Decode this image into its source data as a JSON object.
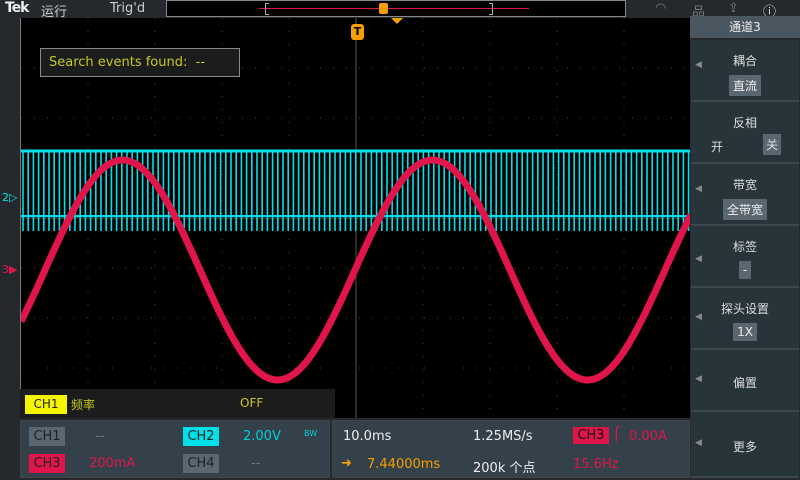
{
  "topbar": {
    "logo": "Tek",
    "run_state": "运行",
    "trigger_state": "Trig'd"
  },
  "icons": [
    "wifi-icon",
    "network-icon",
    "export-icon",
    "help-icon"
  ],
  "search": {
    "label": "Search events found:",
    "value": "--"
  },
  "measurement": {
    "source": "CH1",
    "name": "频率",
    "value": "OFF"
  },
  "markers": {
    "ch2": "2",
    "ch3": "3",
    "trigger": "T"
  },
  "channels": [
    {
      "label": "CH1",
      "value": "--",
      "color": "#5a6670"
    },
    {
      "label": "CH2",
      "value": "2.00V",
      "badge": "BW",
      "color": "#00e0e8"
    },
    {
      "label": "CH3",
      "value": "200mA",
      "color": "#e0164a"
    },
    {
      "label": "CH4",
      "value": "--",
      "color": "#5a6670"
    }
  ],
  "horizontal": {
    "scale": "10.0ms",
    "sample_rate": "1.25MS/s",
    "position": "7.44000ms",
    "record_length": "200k 个点"
  },
  "trigger": {
    "source": "CH3",
    "slope": "rising",
    "level": "0.00A",
    "frequency": "15.6Hz"
  },
  "sidebar": {
    "title": "通道3",
    "items": [
      {
        "label": "耦合",
        "value": "直流"
      },
      {
        "label": "反相",
        "on": "开",
        "off": "关"
      },
      {
        "label": "带宽",
        "value": "全带宽"
      },
      {
        "label": "标签",
        "value": "-"
      },
      {
        "label": "探头设置",
        "value": "1X"
      },
      {
        "label": "偏置"
      },
      {
        "label": "更多"
      }
    ]
  },
  "colors": {
    "ch1": "#f5f500",
    "ch2": "#00e0e8",
    "ch3": "#e0164a",
    "trigger": "#f5a000"
  }
}
